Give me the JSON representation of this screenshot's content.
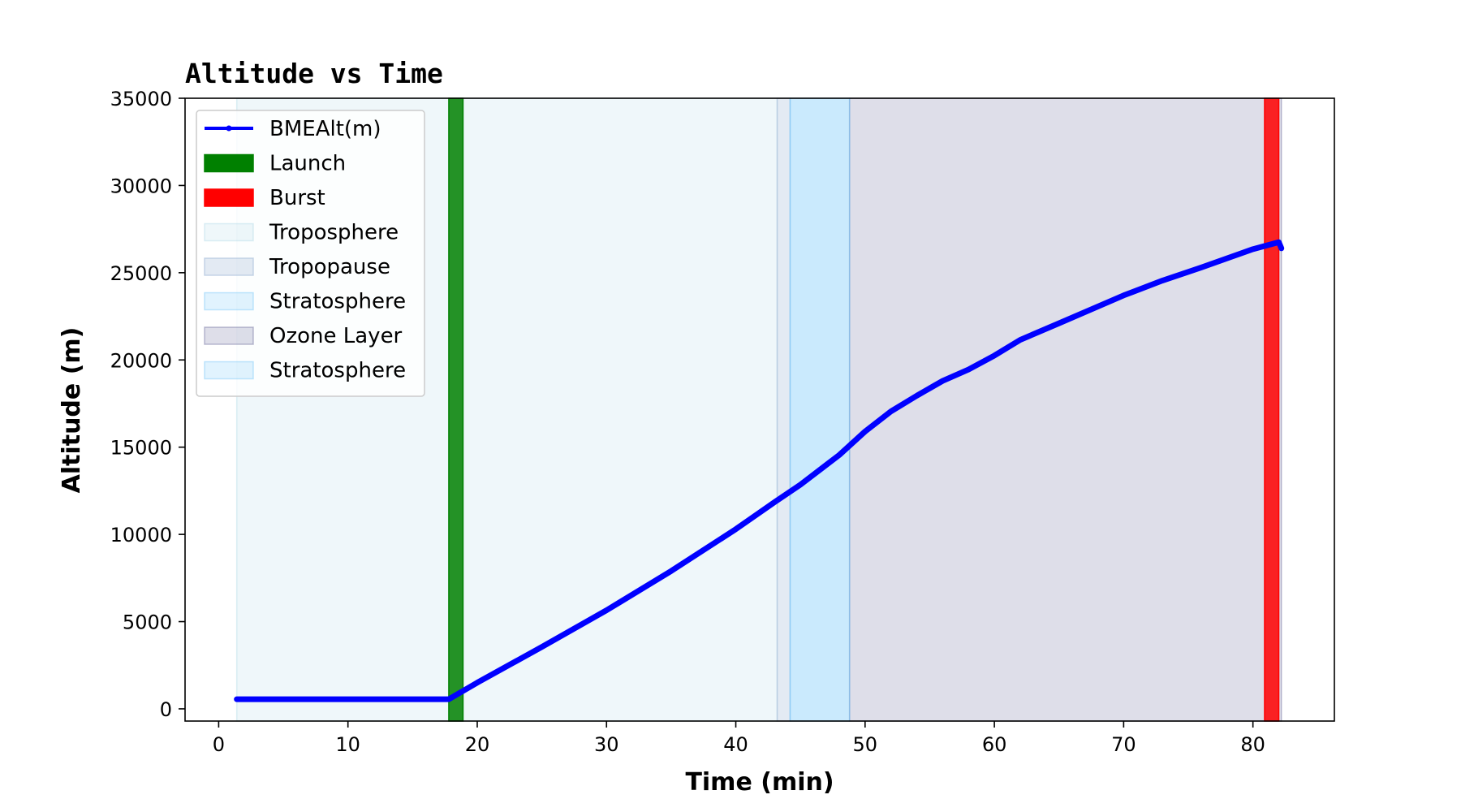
{
  "chart_data": {
    "type": "line",
    "title": "Altitude vs Time",
    "xlabel": "Time (min)",
    "ylabel": "Altitude (m)",
    "xlim": [
      -2.6,
      86.3
    ],
    "ylim": [
      -700,
      35000
    ],
    "xticks": [
      0,
      10,
      20,
      30,
      40,
      50,
      60,
      70,
      80
    ],
    "yticks": [
      0,
      5000,
      10000,
      15000,
      20000,
      25000,
      30000,
      35000
    ],
    "grid": false,
    "legend_position": "upper-left",
    "series": [
      {
        "name": "BMEAlt(m)",
        "color": "#0000ff",
        "x": [
          1.4,
          5,
          10,
          15,
          17.8,
          20,
          25,
          30,
          35,
          40,
          43,
          45,
          48,
          50,
          52,
          54,
          56,
          58,
          60,
          62,
          65,
          70,
          73,
          76,
          80,
          82,
          82.2
        ],
        "y": [
          550,
          550,
          550,
          550,
          550,
          1500,
          3550,
          5650,
          7900,
          10300,
          11850,
          12850,
          14550,
          15900,
          17050,
          17950,
          18800,
          19450,
          20250,
          21150,
          22100,
          23700,
          24550,
          25300,
          26350,
          26750,
          26400
        ]
      }
    ],
    "bands": [
      {
        "name": "Launch",
        "x0": 17.8,
        "x1": 18.9,
        "color": "#008000",
        "opacity": 0.85
      },
      {
        "name": "Burst",
        "x0": 80.9,
        "x1": 82.0,
        "color": "#ff0000",
        "opacity": 0.85
      },
      {
        "name": "Troposphere",
        "x0": 1.4,
        "x1": 43.2,
        "color": "#add8e6",
        "opacity": 0.2
      },
      {
        "name": "Tropopause",
        "x0": 43.2,
        "x1": 44.2,
        "color": "#b0c4de",
        "opacity": 0.35
      },
      {
        "name": "Stratosphere",
        "x0": 44.2,
        "x1": 48.8,
        "color": "#87cefa",
        "opacity": 0.25
      },
      {
        "name": "Ozone Layer",
        "x0": 48.8,
        "x1": 82.2,
        "color": "#6a6a9a",
        "opacity": 0.22
      },
      {
        "name": "Stratosphere",
        "x0": 44.2,
        "x1": 48.8,
        "color": "#87cefa",
        "opacity": 0.25
      }
    ],
    "legend": [
      {
        "label": "BMEAlt(m)",
        "kind": "line",
        "color": "#0000ff"
      },
      {
        "label": "Launch",
        "kind": "patch",
        "color": "#008000",
        "opacity": 1.0
      },
      {
        "label": "Burst",
        "kind": "patch",
        "color": "#ff0000",
        "opacity": 1.0
      },
      {
        "label": "Troposphere",
        "kind": "patch",
        "color": "#add8e6",
        "opacity": 0.2
      },
      {
        "label": "Tropopause",
        "kind": "patch",
        "color": "#b0c4de",
        "opacity": 0.35
      },
      {
        "label": "Stratosphere",
        "kind": "patch",
        "color": "#87cefa",
        "opacity": 0.25
      },
      {
        "label": "Ozone Layer",
        "kind": "patch",
        "color": "#6a6a9a",
        "opacity": 0.22
      },
      {
        "label": "Stratosphere",
        "kind": "patch",
        "color": "#87cefa",
        "opacity": 0.25
      }
    ]
  }
}
